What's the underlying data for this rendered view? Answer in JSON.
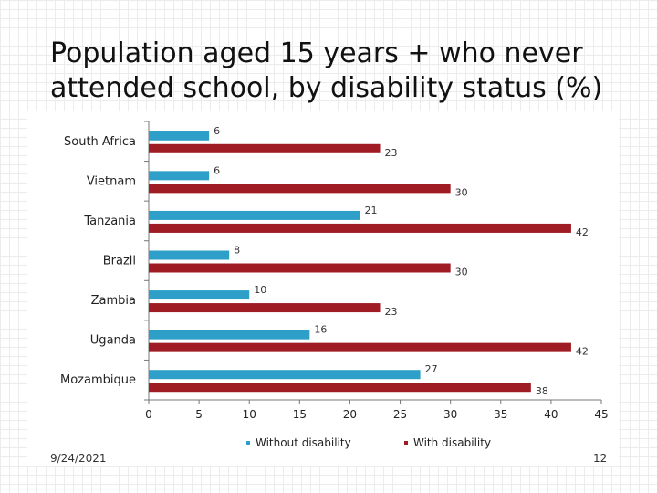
{
  "slide": {
    "title_line1": "Population aged 15 years + who never",
    "title_line2": "attended school, by disability status (%)",
    "date": "9/24/2021",
    "page_number": "12"
  },
  "colors": {
    "without": "#2e9fc8",
    "with": "#a01c24"
  },
  "chart_data": {
    "type": "bar",
    "orientation": "horizontal",
    "title": "Population aged 15 years + who never attended school, by disability status (%)",
    "categories": [
      "South Africa",
      "Vietnam",
      "Tanzania",
      "Brazil",
      "Zambia",
      "Uganda",
      "Mozambique"
    ],
    "series": [
      {
        "name": "Without disability",
        "values": [
          6,
          6,
          21,
          8,
          10,
          16,
          27
        ]
      },
      {
        "name": "With disability",
        "values": [
          23,
          30,
          42,
          30,
          23,
          42,
          38
        ]
      }
    ],
    "xlim": [
      0,
      45
    ],
    "xticks": [
      0,
      5,
      10,
      15,
      20,
      25,
      30,
      35,
      40,
      45
    ],
    "legend": "bottom",
    "grid": false
  }
}
